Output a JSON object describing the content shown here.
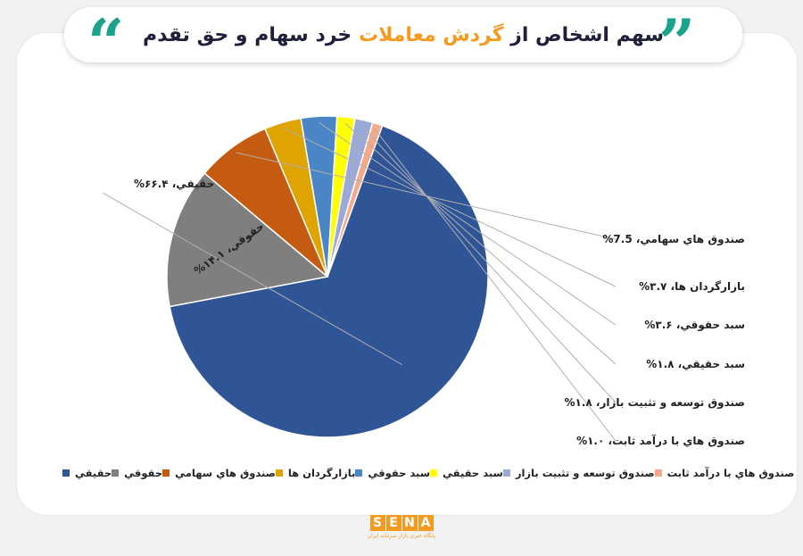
{
  "header": {
    "title_part1": "سهم اشخاص از",
    "title_highlight": "گردش معاملات",
    "title_part2": "خرد سهام و حق تقدم",
    "quote_open": "“",
    "quote_close": "”"
  },
  "colors": {
    "accent": "#f39a1f",
    "quote": "#1aa38a",
    "title": "#1f1f3a"
  },
  "chart_data": {
    "type": "pie",
    "start_angle_deg": 20,
    "slices": [
      {
        "name": "حقيقي",
        "value": 66.4,
        "color": "#2f5597",
        "label": "حقيقي، ۶۶.۴%"
      },
      {
        "name": "حقوقي",
        "value": 14.1,
        "color": "#7f7f7f",
        "label": "حقوقي، ۱۴.۱%"
      },
      {
        "name": "صندوق هاي سهامي",
        "value": 7.5,
        "color": "#c55a11",
        "label": "صندوق هاي سهامي، 7.5%"
      },
      {
        "name": "بازارگردان ها",
        "value": 3.7,
        "color": "#e0a400",
        "label": "بازارگردان ها، ۳.۷%"
      },
      {
        "name": "سبد حقوقي",
        "value": 3.6,
        "color": "#4a86c5",
        "label": "سبد حقوقي، ۳.۶%"
      },
      {
        "name": "سبد حقيقي",
        "value": 1.8,
        "color": "#ffff00",
        "label": "سبد حقيقي، ۱.۸%"
      },
      {
        "name": "صندوق توسعه و تثبيت بازار",
        "value": 1.8,
        "color": "#9aa9d6",
        "label": "صندوق توسعه و تثبيت بازار، ۱.۸%"
      },
      {
        "name": "صندوق هاي با درآمد ثابت",
        "value": 1.0,
        "color": "#f4a98a",
        "label": "صندوق هاي با درآمد ثابت، ۱.۰%"
      }
    ]
  },
  "footer": {
    "logo_letters": [
      "S",
      "E",
      "N",
      "A"
    ],
    "logo_tagline": "پایگاه خبری بازار سرمایه ایران"
  }
}
